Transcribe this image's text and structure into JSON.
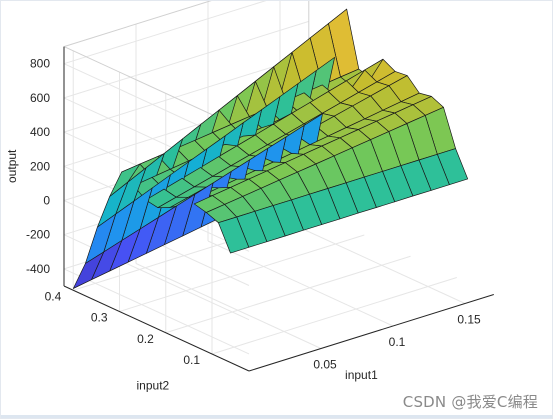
{
  "watermark": "CSDN @我爱C编程",
  "chart_data": {
    "type": "surface",
    "title": "",
    "xlabel": "input1",
    "ylabel": "input2",
    "zlabel": "output",
    "x_ticks": [
      "0.05",
      "0.1",
      "0.15"
    ],
    "y_ticks": [
      "0.1",
      "0.2",
      "0.3",
      "0.4"
    ],
    "z_ticks": [
      "-400",
      "-200",
      "0",
      "200",
      "400",
      "600",
      "800"
    ],
    "x_range": [
      0,
      0.17
    ],
    "y_range": [
      0.02,
      0.42
    ],
    "z_range": [
      -500,
      900
    ],
    "colormap": "parula",
    "grid": true,
    "grid_x": [
      0.0,
      0.0127,
      0.0253,
      0.038,
      0.0507,
      0.0633,
      0.076,
      0.0887,
      0.1013,
      0.114,
      0.1267,
      0.1393,
      0.152,
      0.1647
    ],
    "grid_y": [
      0.4,
      0.3738,
      0.3477,
      0.3215,
      0.2954,
      0.2692,
      0.2431,
      0.2169,
      0.1908,
      0.1646,
      0.1385,
      0.1123,
      0.0862,
      0.06
    ],
    "z_values": [
      [
        -490,
        -472,
        -454,
        -436,
        -418,
        -400,
        -382,
        -364,
        -346,
        -328,
        -310,
        -292,
        -274,
        -256
      ],
      [
        -311,
        -277,
        -243,
        -209,
        -175,
        -141,
        -107,
        -73,
        -39,
        -5,
        29,
        63,
        97,
        131
      ],
      [
        -66,
        -23,
        20,
        63,
        106,
        149,
        192,
        235,
        278,
        321,
        364,
        407,
        450,
        493
      ],
      [
        145,
        196,
        247,
        298,
        349,
        400,
        451,
        502,
        553,
        604,
        655,
        706,
        757,
        808
      ],
      [
        321,
        334,
        347,
        360,
        373,
        386,
        399,
        412,
        425,
        438,
        451,
        464,
        477,
        490
      ],
      [
        274,
        289,
        304,
        319,
        334,
        349,
        364,
        379,
        394,
        409,
        424,
        439,
        454,
        469
      ],
      [
        223,
        253,
        283,
        313,
        343,
        373,
        403,
        433,
        463,
        493,
        523,
        553,
        583,
        613
      ],
      [
        210,
        238,
        266,
        294,
        322,
        350,
        378,
        406,
        434,
        462,
        490,
        518,
        546,
        574
      ],
      [
        244,
        270,
        296,
        322,
        348,
        374,
        400,
        426,
        452,
        478,
        504,
        530,
        556,
        582
      ],
      [
        291,
        308,
        325,
        342,
        359,
        376,
        393,
        410,
        427,
        444,
        461,
        478,
        495,
        512
      ],
      [
        330,
        345,
        360,
        375,
        390,
        405,
        420,
        435,
        450,
        465,
        480,
        495,
        510,
        525
      ],
      [
        312,
        326,
        340,
        354,
        368,
        382,
        396,
        410,
        424,
        438,
        452,
        466,
        480,
        494
      ],
      [
        285,
        285,
        285,
        285,
        285,
        285,
        285,
        285,
        285,
        285,
        285,
        285,
        285,
        285
      ],
      [
        140,
        140,
        140,
        140,
        140,
        140,
        140,
        140,
        140,
        140,
        140,
        140,
        140,
        140
      ]
    ]
  }
}
